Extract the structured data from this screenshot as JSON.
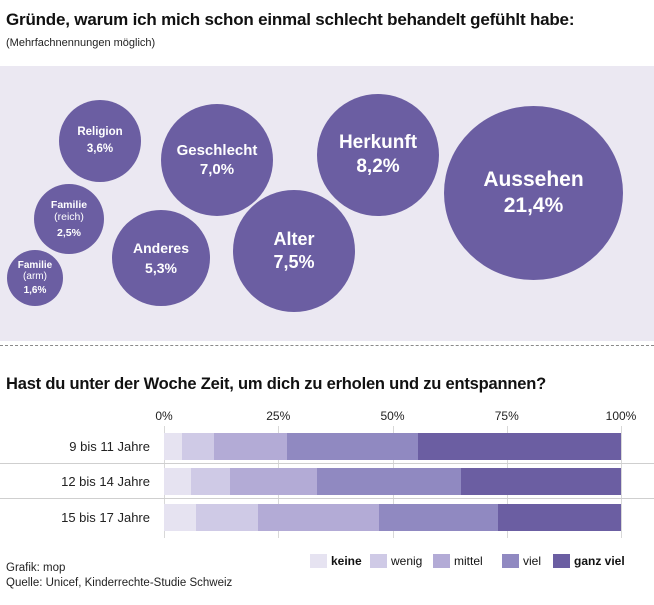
{
  "header": {
    "title": "Gründe, warum ich mich schon einmal schlecht behandelt gefühlt habe:",
    "subtitle": "(Mehrfachnennungen möglich)"
  },
  "bubbles": [
    {
      "label": "Religion",
      "note": "",
      "value": "3,6%",
      "color": "#6b5ea2"
    },
    {
      "label": "Geschlecht",
      "note": "",
      "value": "7,0%",
      "color": "#6b5ea2"
    },
    {
      "label": "Herkunft",
      "note": "",
      "value": "8,2%",
      "color": "#6b5ea2"
    },
    {
      "label": "Aussehen",
      "note": "",
      "value": "21,4%",
      "color": "#6b5ea2"
    },
    {
      "label": "Familie",
      "note": "(reich)",
      "value": "2,5%",
      "color": "#6b5ea2"
    },
    {
      "label": "Anderes",
      "note": "",
      "value": "5,3%",
      "color": "#6b5ea2"
    },
    {
      "label": "Alter",
      "note": "",
      "value": "7,5%",
      "color": "#6b5ea2"
    },
    {
      "label": "Familie",
      "note": "(arm)",
      "value": "1,6%",
      "color": "#6b5ea2"
    }
  ],
  "section2": {
    "title": "Hast du unter der Woche Zeit, um dich zu erholen und zu entspannen?"
  },
  "chart_data": [
    {
      "type": "bubble",
      "title": "Gründe, warum ich mich schon einmal schlecht behandelt gefühlt habe:",
      "subtitle": "(Mehrfachnennungen möglich)",
      "categories": [
        "Religion",
        "Geschlecht",
        "Herkunft",
        "Aussehen",
        "Familie (reich)",
        "Anderes",
        "Alter",
        "Familie (arm)"
      ],
      "values": [
        3.6,
        7.0,
        8.2,
        21.4,
        2.5,
        5.3,
        7.5,
        1.6
      ]
    },
    {
      "type": "bar",
      "orientation": "horizontal",
      "stacked": true,
      "title": "Hast du unter der Woche Zeit, um dich zu erholen und zu entspannen?",
      "categories": [
        "9 bis 11 Jahre",
        "12 bis 14 Jahre",
        "15 bis 17 Jahre"
      ],
      "ticks": [
        "0%",
        "25%",
        "50%",
        "75%",
        "100%"
      ],
      "xlim": [
        0,
        100
      ],
      "series": [
        {
          "name": "keine",
          "values": [
            4,
            6,
            7
          ],
          "color": "#e6e3f1"
        },
        {
          "name": "wenig",
          "values": [
            7,
            8.5,
            13.5
          ],
          "color": "#cfcae6"
        },
        {
          "name": "mittel",
          "values": [
            16,
            19,
            26.5
          ],
          "color": "#b3abd6"
        },
        {
          "name": "viel",
          "values": [
            28.5,
            31.5,
            26
          ],
          "color": "#9089c1"
        },
        {
          "name": "ganz viel",
          "values": [
            44.5,
            35,
            27
          ],
          "color": "#6b5ea2"
        }
      ],
      "legend": "bottom-right"
    }
  ],
  "footer": {
    "credit": "Grafik: mop",
    "source": "Quelle: Unicef, Kinderrechte-Studie Schweiz"
  }
}
